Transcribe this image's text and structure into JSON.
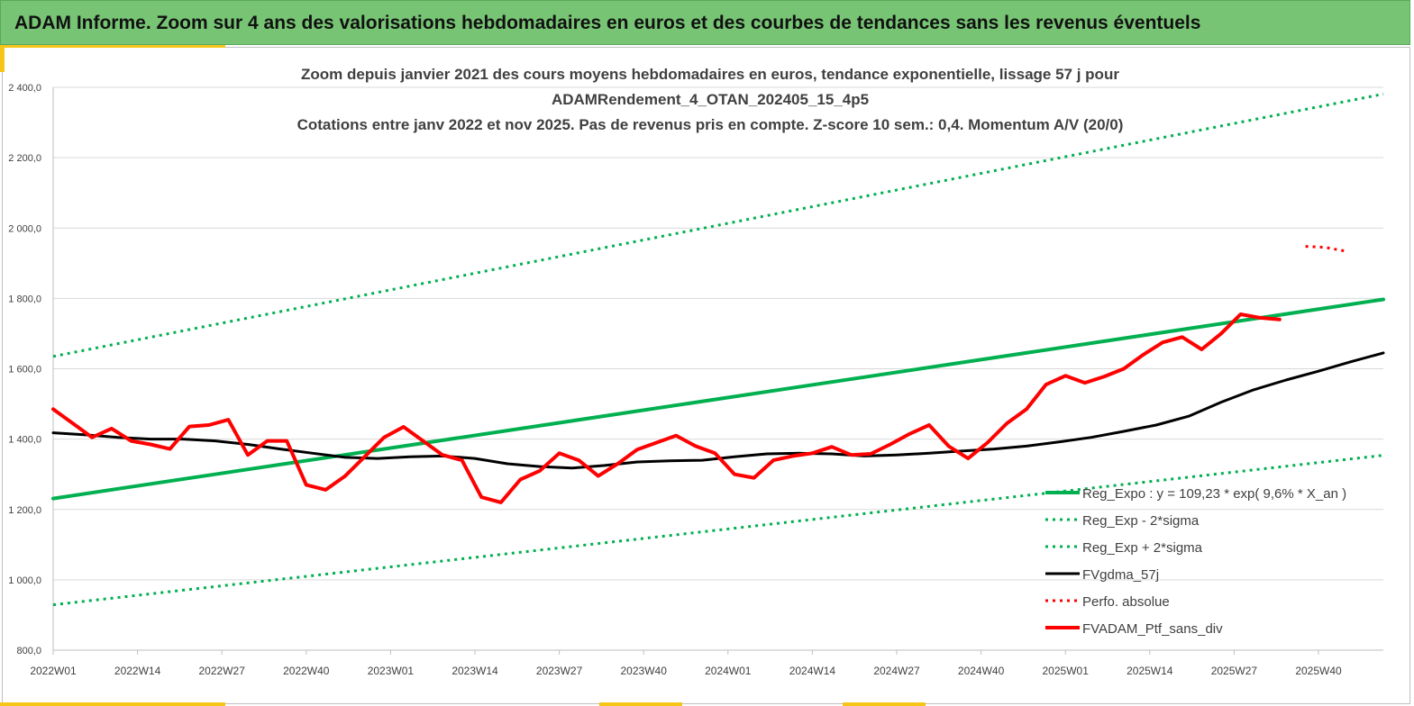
{
  "header": {
    "title": "ADAM Informe. Zoom sur 4 ans des valorisations hebdomadaires en euros et des courbes de tendances sans les revenus éventuels"
  },
  "colors": {
    "banner": "#77c574",
    "accent": "#f5c518",
    "trend": "#00b050",
    "smooth": "#000000",
    "portfolio": "#ff0000"
  },
  "chart_data": {
    "type": "line",
    "title_lines": [
      "Zoom depuis janvier 2021 des cours moyens hebdomadaires  en euros, tendance exponentielle, lissage 57 j pour",
      "ADAMRendement_4_OTAN_202405_15_4p5",
      "Cotations  entre janv 2022 et nov 2025. Pas de revenus pris en compte. Z-score 10 sem.: 0,4. Momentum  A/V (20/0)"
    ],
    "x_tick_labels": [
      "2022W01",
      "2022W14",
      "2022W27",
      "2022W40",
      "2023W01",
      "2023W14",
      "2023W27",
      "2023W40",
      "2024W01",
      "2024W14",
      "2024W27",
      "2024W40",
      "2025W01",
      "2025W14",
      "2025W27",
      "2025W40"
    ],
    "y_tick_labels": [
      "800,0",
      "1 000,0",
      "1 200,0",
      "1 400,0",
      "1 600,0",
      "1 800,0",
      "2 000,0",
      "2 200,0",
      "2 400,0"
    ],
    "ylim": [
      800,
      2400
    ],
    "x_unit": "weeks since 2022W01",
    "xlim": [
      0,
      205
    ],
    "grid": "horizontal",
    "legend_position": "bottom-right",
    "series": [
      {
        "name": "Reg_Expo : y = 109,23 * exp( 9,6% *  X_an )",
        "style": "solid-thick",
        "color": "#00b050",
        "points": [
          [
            0,
            1231
          ],
          [
            205,
            1797
          ]
        ]
      },
      {
        "name": "Reg_Exp - 2*sigma",
        "style": "dotted",
        "color": "#00b050",
        "points": [
          [
            0,
            929
          ],
          [
            205,
            1354
          ]
        ]
      },
      {
        "name": "Reg_Exp + 2*sigma",
        "style": "dotted",
        "color": "#00b050",
        "points": [
          [
            0,
            1635
          ],
          [
            205,
            2381
          ]
        ]
      },
      {
        "name": "FVgdma_57j",
        "style": "solid",
        "color": "#000000",
        "points": [
          [
            0,
            1418
          ],
          [
            5,
            1412
          ],
          [
            10,
            1405
          ],
          [
            15,
            1400
          ],
          [
            20,
            1400
          ],
          [
            25,
            1395
          ],
          [
            30,
            1385
          ],
          [
            35,
            1372
          ],
          [
            40,
            1360
          ],
          [
            45,
            1348
          ],
          [
            50,
            1345
          ],
          [
            55,
            1350
          ],
          [
            60,
            1352
          ],
          [
            65,
            1345
          ],
          [
            70,
            1330
          ],
          [
            75,
            1322
          ],
          [
            80,
            1318
          ],
          [
            85,
            1325
          ],
          [
            90,
            1335
          ],
          [
            95,
            1338
          ],
          [
            100,
            1340
          ],
          [
            105,
            1350
          ],
          [
            110,
            1358
          ],
          [
            115,
            1360
          ],
          [
            120,
            1358
          ],
          [
            125,
            1352
          ],
          [
            130,
            1355
          ],
          [
            135,
            1360
          ],
          [
            140,
            1366
          ],
          [
            145,
            1372
          ],
          [
            150,
            1380
          ],
          [
            155,
            1392
          ],
          [
            160,
            1405
          ],
          [
            165,
            1422
          ],
          [
            170,
            1440
          ],
          [
            175,
            1465
          ],
          [
            180,
            1505
          ],
          [
            185,
            1540
          ],
          [
            190,
            1568
          ],
          [
            195,
            1593
          ],
          [
            200,
            1620
          ],
          [
            205,
            1645
          ]
        ]
      },
      {
        "name": "Perfo. absolue",
        "style": "dotted",
        "color": "#ff0000",
        "points": [
          [
            193,
            1948
          ],
          [
            196,
            1945
          ],
          [
            199,
            1935
          ]
        ]
      },
      {
        "name": "FVADAM_Ptf_sans_div",
        "style": "solid-thick",
        "color": "#ff0000",
        "points": [
          [
            0,
            1485
          ],
          [
            3,
            1445
          ],
          [
            6,
            1405
          ],
          [
            9,
            1430
          ],
          [
            12,
            1395
          ],
          [
            15,
            1385
          ],
          [
            18,
            1372
          ],
          [
            21,
            1436
          ],
          [
            24,
            1440
          ],
          [
            27,
            1455
          ],
          [
            30,
            1355
          ],
          [
            33,
            1395
          ],
          [
            36,
            1395
          ],
          [
            39,
            1270
          ],
          [
            42,
            1256
          ],
          [
            45,
            1295
          ],
          [
            48,
            1350
          ],
          [
            51,
            1405
          ],
          [
            54,
            1435
          ],
          [
            57,
            1395
          ],
          [
            60,
            1355
          ],
          [
            63,
            1340
          ],
          [
            66,
            1235
          ],
          [
            69,
            1220
          ],
          [
            72,
            1285
          ],
          [
            75,
            1310
          ],
          [
            78,
            1360
          ],
          [
            81,
            1340
          ],
          [
            84,
            1295
          ],
          [
            87,
            1330
          ],
          [
            90,
            1370
          ],
          [
            93,
            1390
          ],
          [
            96,
            1410
          ],
          [
            99,
            1380
          ],
          [
            102,
            1360
          ],
          [
            105,
            1300
          ],
          [
            108,
            1290
          ],
          [
            111,
            1340
          ],
          [
            114,
            1352
          ],
          [
            117,
            1360
          ],
          [
            120,
            1378
          ],
          [
            123,
            1355
          ],
          [
            126,
            1358
          ],
          [
            129,
            1385
          ],
          [
            132,
            1415
          ],
          [
            135,
            1440
          ],
          [
            138,
            1380
          ],
          [
            141,
            1345
          ],
          [
            144,
            1390
          ],
          [
            147,
            1445
          ],
          [
            150,
            1485
          ],
          [
            153,
            1555
          ],
          [
            156,
            1580
          ],
          [
            159,
            1560
          ],
          [
            162,
            1578
          ],
          [
            165,
            1600
          ],
          [
            168,
            1640
          ],
          [
            171,
            1675
          ],
          [
            174,
            1690
          ],
          [
            177,
            1655
          ],
          [
            180,
            1700
          ],
          [
            183,
            1755
          ],
          [
            186,
            1745
          ],
          [
            189,
            1740
          ]
        ]
      }
    ],
    "legend": [
      "Reg_Expo : y = 109,23 * exp( 9,6% *  X_an )",
      "Reg_Exp - 2*sigma",
      "Reg_Exp + 2*sigma",
      "FVgdma_57j",
      "Perfo. absolue",
      "FVADAM_Ptf_sans_div"
    ]
  }
}
